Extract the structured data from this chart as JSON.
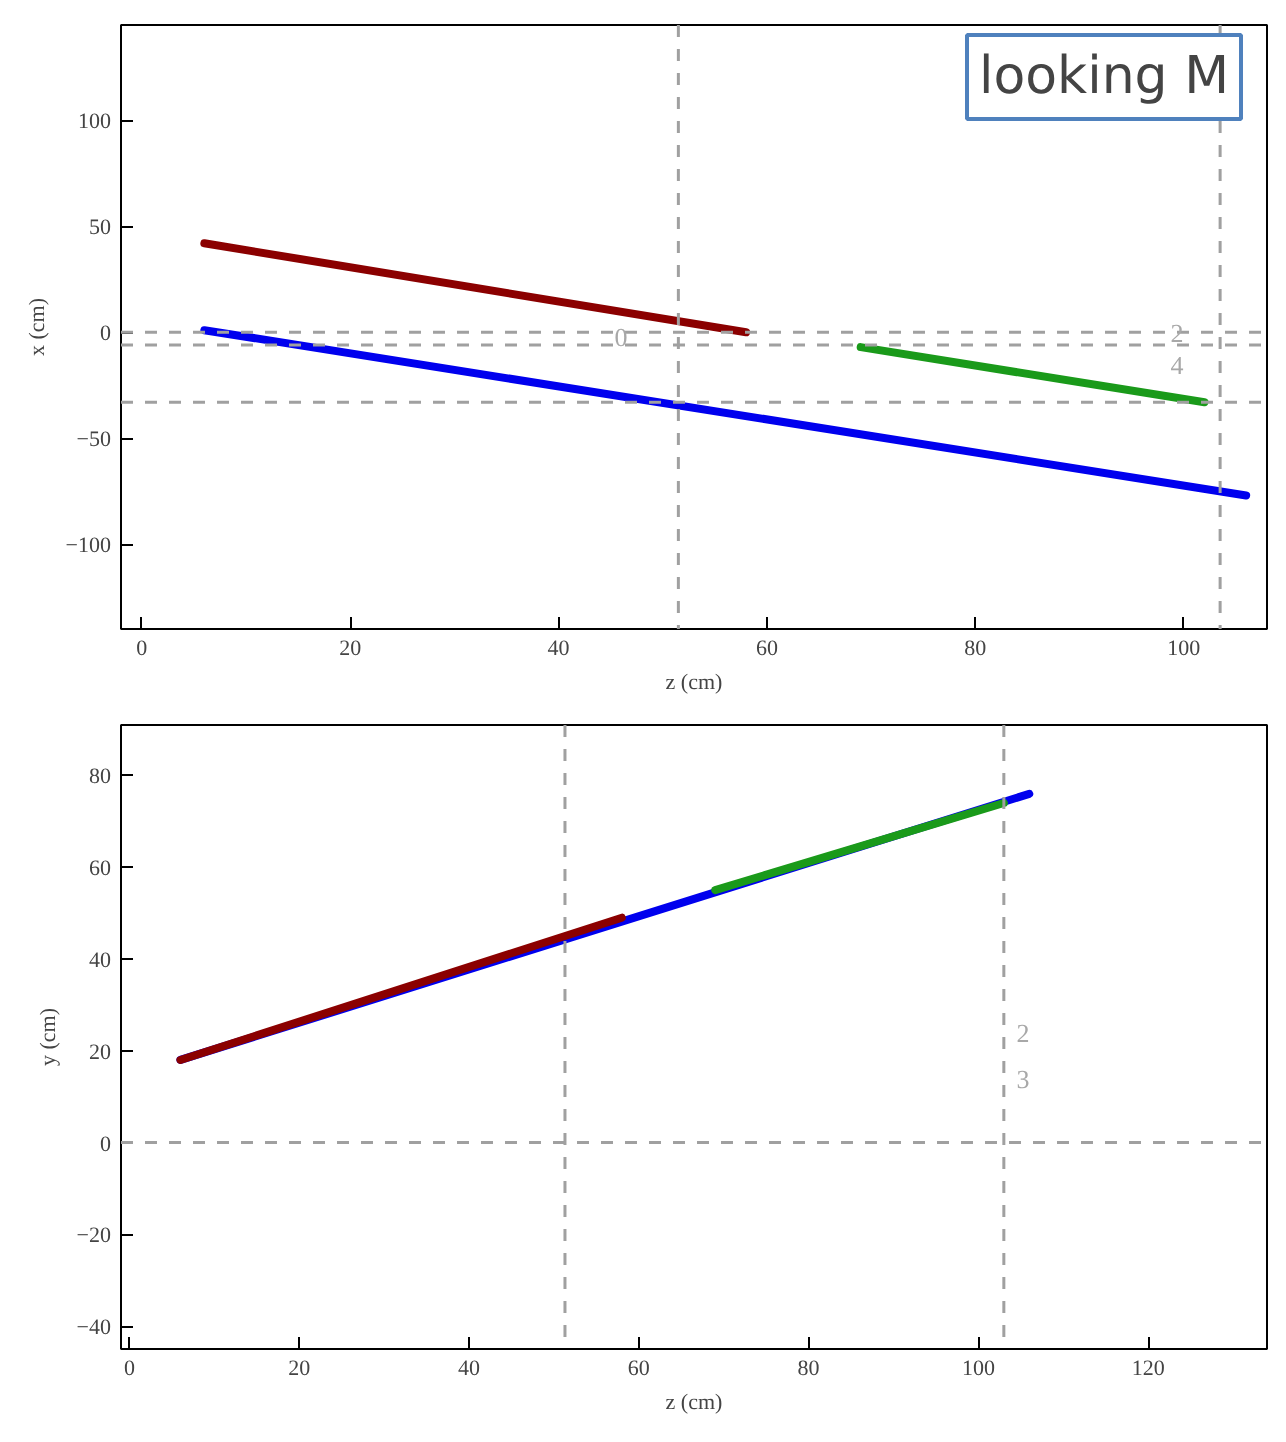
{
  "chart_data": [
    {
      "type": "line",
      "xlabel": "z (cm)",
      "ylabel": "x (cm)",
      "xlim": [
        -2,
        108
      ],
      "ylim": [
        -140,
        145
      ],
      "xticks": [
        0,
        20,
        40,
        60,
        80,
        100
      ],
      "yticks": [
        -100,
        -50,
        0,
        50,
        100
      ],
      "grid": false,
      "series": [
        {
          "color": "#8b0000",
          "x": [
            6,
            58
          ],
          "values": [
            42,
            0
          ]
        },
        {
          "color": "#0000ee",
          "x": [
            6,
            106
          ],
          "values": [
            1,
            -77
          ]
        },
        {
          "color": "#1a9a1a",
          "x": [
            69,
            102
          ],
          "values": [
            -7,
            -33
          ]
        }
      ],
      "ref_lines": [
        {
          "axis": "x",
          "value": 51.5,
          "color": "#a0a0a0",
          "line_style": "dashed"
        },
        {
          "axis": "x",
          "value": 103.5,
          "color": "#a0a0a0",
          "line_style": "dashed"
        },
        {
          "axis": "y",
          "value": 0,
          "color": "#a0a0a0",
          "line_style": "dashed"
        },
        {
          "axis": "y",
          "value": -6,
          "color": "#a0a0a0",
          "line_style": "dashed"
        },
        {
          "axis": "y",
          "value": -33,
          "color": "#a0a0a0",
          "line_style": "dashed"
        }
      ],
      "annotations": [
        "0",
        "2",
        "4",
        "looking M"
      ]
    },
    {
      "type": "line",
      "xlabel": "z (cm)",
      "ylabel": "y (cm)",
      "xlim": [
        -1,
        134
      ],
      "ylim": [
        -45,
        91
      ],
      "xticks": [
        0,
        20,
        40,
        60,
        80,
        100,
        120
      ],
      "yticks": [
        -40,
        -20,
        0,
        20,
        40,
        60,
        80
      ],
      "grid": false,
      "series": [
        {
          "color": "#0000ee",
          "x": [
            6,
            106
          ],
          "values": [
            18,
            76
          ]
        },
        {
          "color": "#8b0000",
          "x": [
            6,
            58
          ],
          "values": [
            18,
            49
          ]
        },
        {
          "color": "#1a9a1a",
          "x": [
            69,
            103
          ],
          "values": [
            55,
            74
          ]
        }
      ],
      "ref_lines": [
        {
          "axis": "x",
          "value": 51.3,
          "color": "#a0a0a0",
          "line_style": "dashed"
        },
        {
          "axis": "x",
          "value": 103,
          "color": "#a0a0a0",
          "line_style": "dashed"
        },
        {
          "axis": "y",
          "value": 0,
          "color": "#a0a0a0",
          "line_style": "dashed"
        }
      ],
      "annotations": [
        "2",
        "3"
      ]
    }
  ]
}
